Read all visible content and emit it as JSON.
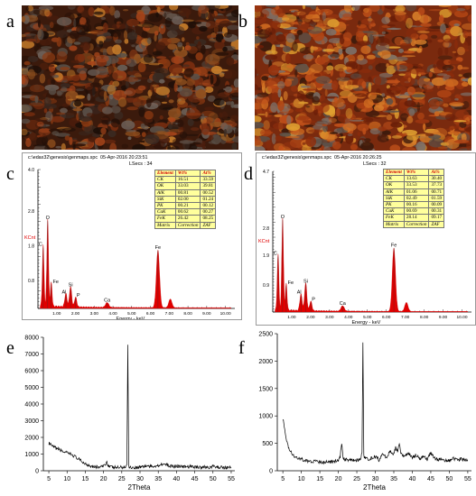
{
  "panels": {
    "a": {
      "letter": "a"
    },
    "b": {
      "letter": "b"
    },
    "c": {
      "letter": "c"
    },
    "d": {
      "letter": "d"
    },
    "e": {
      "letter": "e"
    },
    "f": {
      "letter": "f"
    }
  },
  "eds": [
    {
      "header_path": "c:\\edax32\\genesis\\genmaps.spc",
      "header_date": "05-Apr-2016 20:23:51",
      "header_lsecs": "LSecs : 34",
      "y_unit": "KCnt",
      "x_label": "Energy - keV",
      "table": {
        "columns": [
          "Element",
          "Wt%",
          "At%"
        ],
        "rows": [
          [
            "CK",
            "16.51",
            "33.59"
          ],
          [
            "OK",
            "33.03",
            "39.81"
          ],
          [
            "AlK",
            "00.81",
            "00.52"
          ],
          [
            "SiK",
            "02.00",
            "01.24"
          ],
          [
            "PK",
            "00.21",
            "00.12"
          ],
          [
            "CaK",
            "00.62",
            "00.27"
          ],
          [
            "FeK",
            "26.42",
            "08.25"
          ],
          [
            "Matrix",
            "Correction",
            "ZAF"
          ]
        ]
      },
      "chart_data": {
        "type": "line",
        "title": "",
        "xlabel": "Energy - keV",
        "ylabel": "KCnt",
        "xlim": [
          0,
          10.5
        ],
        "ylim": [
          0,
          4.0
        ],
        "x_ticks": [
          "1.00",
          "2.00",
          "3.00",
          "4.00",
          "5.00",
          "6.00",
          "7.00",
          "8.00",
          "9.00",
          "10.00"
        ],
        "y_ticks": [
          "0.4",
          "0.8",
          "1.2",
          "1.6",
          "2.0",
          "2.4",
          "2.8",
          "3.2",
          "3.6",
          "4.0"
        ],
        "y_tick_labels_shown": [
          "4.0",
          "2.8",
          "1.8",
          "0.8"
        ],
        "peaks": [
          {
            "label": "C",
            "x": 0.28,
            "y": 1.75
          },
          {
            "label": "O",
            "x": 0.52,
            "y": 2.52
          },
          {
            "label": "Fe",
            "x": 0.71,
            "y": 0.68
          },
          {
            "label": "Al",
            "x": 1.49,
            "y": 0.38
          },
          {
            "label": "Si",
            "x": 1.74,
            "y": 0.58
          },
          {
            "label": "P",
            "x": 2.01,
            "y": 0.28
          },
          {
            "label": "Ca",
            "x": 3.69,
            "y": 0.14
          },
          {
            "label": "Fe",
            "x": 6.4,
            "y": 1.66
          },
          {
            "label": "",
            "x": 7.06,
            "y": 0.25
          }
        ]
      }
    },
    {
      "header_path": "c:\\edax32\\genesis\\genmaps.spc",
      "header_date": "05-Apr-2016 20:26:25",
      "header_lsecs": "LSecs : 32",
      "y_unit": "KCnt",
      "x_label": "Energy - keV",
      "table": {
        "columns": [
          "Element",
          "Wt%",
          "At%"
        ],
        "rows": [
          [
            "CK",
            "13.63",
            "30.40"
          ],
          [
            "OK",
            "33.53",
            "37.73"
          ],
          [
            "AlK",
            "01.06",
            "00.71"
          ],
          [
            "SiK",
            "02.49",
            "01.59"
          ],
          [
            "PK",
            "00.16",
            "00.09"
          ],
          [
            "CaK",
            "00.69",
            "00.31"
          ],
          [
            "FeK",
            "28.14",
            "09.17"
          ],
          [
            "Matrix",
            "Correction",
            "ZAF"
          ]
        ]
      },
      "chart_data": {
        "type": "line",
        "title": "",
        "xlabel": "Energy - keV",
        "ylabel": "KCnt",
        "xlim": [
          0,
          10.5
        ],
        "ylim": [
          0,
          4.7
        ],
        "x_ticks": [
          "1.00",
          "2.00",
          "3.00",
          "4.00",
          "5.00",
          "6.00",
          "7.00",
          "8.00",
          "9.00",
          "10.00"
        ],
        "y_tick_labels_shown": [
          "4.7",
          "2.8",
          "1.9",
          "0.9"
        ],
        "peaks": [
          {
            "label": "C",
            "x": 0.28,
            "y": 1.85
          },
          {
            "label": "O",
            "x": 0.52,
            "y": 3.08
          },
          {
            "label": "Fe",
            "x": 0.71,
            "y": 0.88
          },
          {
            "label": "Al",
            "x": 1.49,
            "y": 0.55
          },
          {
            "label": "Si",
            "x": 1.74,
            "y": 0.92
          },
          {
            "label": "P",
            "x": 2.01,
            "y": 0.32
          },
          {
            "label": "Ca",
            "x": 3.69,
            "y": 0.18
          },
          {
            "label": "Fe",
            "x": 6.4,
            "y": 2.12
          },
          {
            "label": "",
            "x": 7.06,
            "y": 0.3
          }
        ]
      }
    }
  ],
  "chart_data": [
    {
      "type": "line",
      "title": "",
      "xlabel": "2Theta",
      "ylabel": "",
      "xlim": [
        3.5,
        56
      ],
      "ylim": [
        0,
        8000
      ],
      "x_ticks": [
        5,
        10,
        15,
        20,
        25,
        30,
        35,
        40,
        45,
        50,
        55
      ],
      "y_ticks": [
        0,
        1000,
        2000,
        3000,
        4000,
        5000,
        6000,
        7000,
        8000
      ],
      "series": [
        {
          "x": [
            5,
            6,
            7,
            8,
            9,
            10,
            11,
            12,
            13,
            14,
            15,
            16,
            17,
            18,
            19,
            20,
            20.5,
            20.9,
            21.3,
            22,
            23,
            24,
            25,
            26,
            26.4,
            26.65,
            26.9,
            27.5,
            28,
            29,
            30,
            31,
            32,
            33,
            34,
            35,
            36,
            37,
            38,
            39,
            40,
            41,
            42,
            43,
            44,
            45,
            46,
            47,
            48,
            49,
            50,
            51,
            52,
            53,
            54,
            55
          ],
          "y": [
            1650,
            1450,
            1350,
            1250,
            1150,
            1050,
            1000,
            880,
            720,
            560,
            420,
            330,
            270,
            230,
            220,
            260,
            420,
            520,
            320,
            220,
            200,
            190,
            210,
            230,
            380,
            7550,
            280,
            200,
            190,
            200,
            230,
            260,
            290,
            250,
            290,
            320,
            420,
            360,
            300,
            260,
            290,
            250,
            230,
            240,
            260,
            220,
            230,
            210,
            220,
            200,
            260,
            210,
            220,
            190,
            200,
            190
          ]
        }
      ]
    },
    {
      "type": "line",
      "title": "",
      "xlabel": "2Theta",
      "ylabel": "",
      "xlim": [
        3.5,
        56
      ],
      "ylim": [
        0,
        2500
      ],
      "x_ticks": [
        5,
        10,
        15,
        20,
        25,
        30,
        35,
        40,
        45,
        50,
        55
      ],
      "y_ticks": [
        0,
        500,
        1000,
        1500,
        2000,
        2500
      ],
      "series": [
        {
          "x": [
            5,
            5.5,
            6,
            6.5,
            7,
            8,
            9,
            10,
            11,
            12,
            13,
            14,
            15,
            16,
            17,
            18,
            19,
            20,
            20.5,
            20.9,
            21.3,
            22,
            23,
            24,
            25,
            26,
            26.4,
            26.65,
            26.9,
            27.5,
            28,
            29,
            30,
            31,
            32,
            33,
            34,
            35,
            35.5,
            36,
            36.5,
            37,
            38,
            39,
            40,
            41,
            42,
            43,
            44,
            45,
            46,
            47,
            48,
            49,
            50,
            51,
            52,
            53,
            54,
            55
          ],
          "y": [
            950,
            750,
            550,
            420,
            350,
            280,
            230,
            210,
            190,
            180,
            170,
            165,
            160,
            155,
            160,
            165,
            170,
            180,
            260,
            520,
            240,
            200,
            190,
            185,
            190,
            210,
            330,
            2340,
            260,
            220,
            210,
            230,
            260,
            200,
            320,
            240,
            360,
            300,
            420,
            360,
            470,
            300,
            260,
            320,
            240,
            290,
            220,
            270,
            200,
            330,
            230,
            200,
            210,
            190,
            180,
            230,
            190,
            210,
            200,
            190
          ]
        }
      ]
    }
  ]
}
